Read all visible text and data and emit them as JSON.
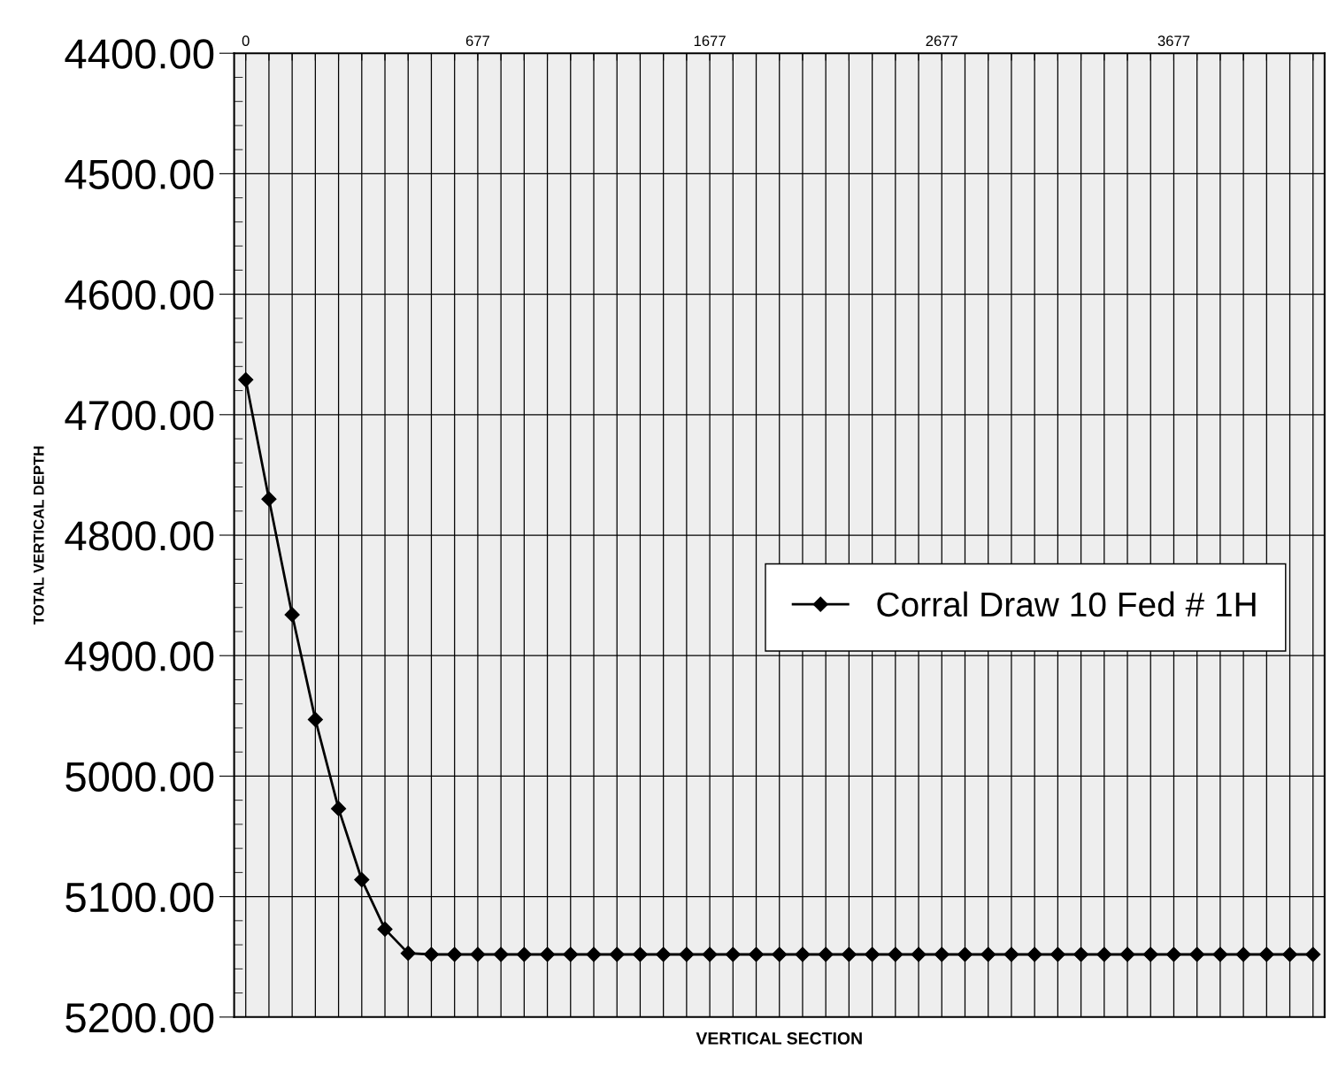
{
  "chart_data": {
    "type": "line",
    "xlabel": "VERTICAL SECTION",
    "ylabel": "TOTAL VERTICAL DEPTH",
    "categories": [
      "0",
      null,
      null,
      null,
      null,
      null,
      null,
      null,
      null,
      null,
      "677",
      null,
      null,
      null,
      null,
      null,
      null,
      null,
      null,
      null,
      "1677",
      null,
      null,
      null,
      null,
      null,
      null,
      null,
      null,
      null,
      "2677",
      null,
      null,
      null,
      null,
      null,
      null,
      null,
      null,
      null,
      "3677",
      null,
      null,
      null,
      null,
      null,
      null
    ],
    "series": [
      {
        "name": "Corral Draw 10 Fed # 1H",
        "color": "#000000",
        "values": [
          4671,
          4770,
          4866,
          4953,
          5027,
          5086,
          5127,
          5147,
          5148,
          5148,
          5148,
          5148,
          5148,
          5148,
          5148,
          5148,
          5148,
          5148,
          5148,
          5148,
          5148,
          5148,
          5148,
          5148,
          5148,
          5148,
          5148,
          5148,
          5148,
          5148,
          5148,
          5148,
          5148,
          5148,
          5148,
          5148,
          5148,
          5148,
          5148,
          5148,
          5148,
          5148,
          5148,
          5148,
          5148,
          5148,
          5148
        ]
      }
    ],
    "ylim": [
      5200,
      4400
    ],
    "yticks": [
      {
        "value": 4400,
        "label": "4400.00"
      },
      {
        "value": 4500,
        "label": "4500.00"
      },
      {
        "value": 4600,
        "label": "4600.00"
      },
      {
        "value": 4700,
        "label": "4700.00"
      },
      {
        "value": 4800,
        "label": "4800.00"
      },
      {
        "value": 4900,
        "label": "4900.00"
      },
      {
        "value": 5000,
        "label": "5000.00"
      },
      {
        "value": 5100,
        "label": "5100.00"
      },
      {
        "value": 5200,
        "label": "5200.00"
      }
    ],
    "grid": true,
    "legend": "center right",
    "marker": "diamond",
    "line_style": "solid"
  }
}
